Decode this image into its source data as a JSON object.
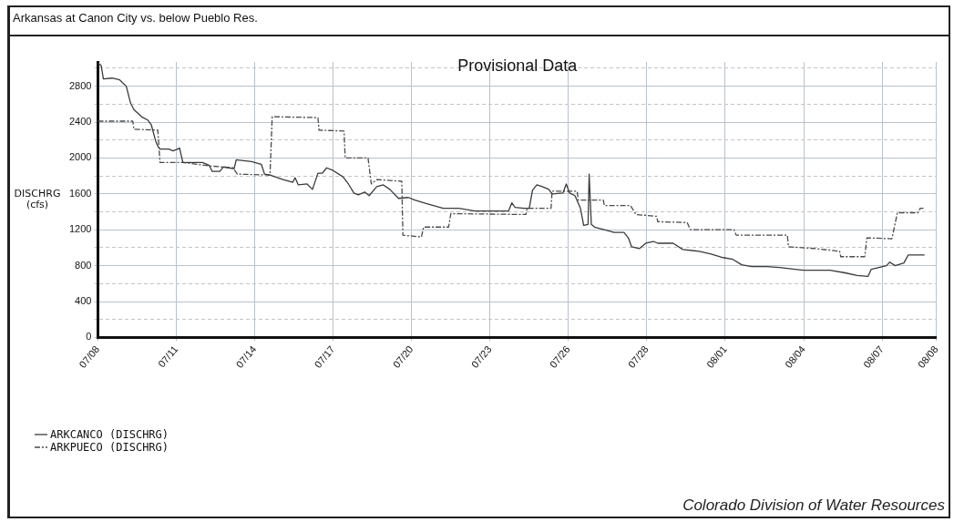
{
  "chart_data": {
    "type": "line",
    "title": "Arkansas at Canon City vs. below Pueblo Res.",
    "ylabel": "DISCHRG\n(cfs)",
    "annotations": [
      "Provisional Data",
      "Colorado Division of Water Resources"
    ],
    "xlim": [
      "--07-08T00:00",
      "--08-09T02:00"
    ],
    "xticks": [
      {
        "value": "--07-08",
        "label": "07/08"
      },
      {
        "value": "--07-11",
        "label": "07/11"
      },
      {
        "value": "--07-14",
        "label": "07/14"
      },
      {
        "value": "--07-17",
        "label": "07/17"
      },
      {
        "value": "--07-20",
        "label": "07/20"
      },
      {
        "value": "--07-23",
        "label": "07/23"
      },
      {
        "value": "--07-26",
        "label": "07/26"
      },
      {
        "value": "--07-29",
        "label": "07/28"
      },
      {
        "value": "--08-01",
        "label": "08/01"
      },
      {
        "value": "--08-04",
        "label": "08/04"
      },
      {
        "value": "--08-07",
        "label": "08/07"
      },
      {
        "value": "--08-09T02:00",
        "label": "08/08"
      }
    ],
    "ylim": [
      0,
      3070
    ],
    "yticks": [
      0,
      {
        "value": 200,
        "label": null
      },
      400,
      {
        "value": 600,
        "label": null
      },
      800,
      {
        "value": 1000,
        "label": null
      },
      1200,
      {
        "value": 1400,
        "label": null
      },
      1600,
      {
        "value": 1800,
        "label": null
      },
      2000,
      {
        "value": 2200,
        "label": null
      },
      2400,
      {
        "value": 2600,
        "label": null
      },
      2800,
      {
        "value": 3000,
        "label": null
      }
    ],
    "grid": true,
    "legend": "bottom left",
    "marker": "none",
    "series": [
      {
        "name": "ARKCANCO (DISCHRG)",
        "color": "#3a3a3a",
        "line_style": "solid",
        "x": [
          "--07-08T00:00",
          "--07-08T03:00",
          "--07-08T05:00",
          "--07-08T13:00",
          "--07-08T20:00",
          "--07-09T02:00",
          "--07-09T06:00",
          "--07-09T09:00",
          "--07-09T16:00",
          "--07-09T22:00",
          "--07-10T01:00",
          "--07-10T05:00",
          "--07-10T07:00",
          "--07-10T09:00",
          "--07-10T17:00",
          "--07-10T21:00",
          "--07-11T03:00",
          "--07-11T06:00",
          "--07-11T17:00",
          "--07-12T00:00",
          "--07-12T06:00",
          "--07-12T09:00",
          "--07-12T16:00",
          "--07-12T19:00",
          "--07-13T05:00",
          "--07-13T07:00",
          "--07-13T21:00",
          "--07-14T06:00",
          "--07-14T09:00",
          "--07-14T14:00",
          "--07-15T02:00",
          "--07-15T11:00",
          "--07-15T13:00",
          "--07-15T16:00",
          "--07-16T00:00",
          "--07-16T05:00",
          "--07-16T10:00",
          "--07-16T14:00",
          "--07-16T18:00",
          "--07-17T00:00",
          "--07-17T09:00",
          "--07-17T14:00",
          "--07-17T19:00",
          "--07-17T23:00",
          "--07-18T05:00",
          "--07-18T09:00",
          "--07-18T16:00",
          "--07-18T22:00",
          "--07-19T04:00",
          "--07-19T12:00",
          "--07-19T21:00",
          "--07-20T03:00",
          "--07-20T14:00",
          "--07-21T05:00",
          "--07-21T19:00",
          "--07-22T10:00",
          "--07-23T00:00",
          "--07-23T17:00",
          "--07-23T20:00",
          "--07-23T23:00",
          "--07-24T07:00",
          "--07-24T12:00",
          "--07-24T15:00",
          "--07-24T19:00",
          "--07-25T00:00",
          "--07-25T06:00",
          "--07-25T09:00",
          "--07-25T19:00",
          "--07-25T22:00",
          "--07-26T01:00",
          "--07-26T06:00",
          "--07-26T11:00",
          "--07-26T14:00",
          "--07-26T18:00",
          "--07-26T19:00",
          "--07-26T21:00",
          "--07-27T00:00",
          "--07-27T12:00",
          "--07-27T18:00",
          "--07-28T03:00",
          "--07-28T07:00",
          "--07-28T10:00",
          "--07-28T17:00",
          "--07-28T23:00",
          "--07-29T06:00",
          "--07-29T10:00",
          "--07-30T00:00",
          "--07-30T09:00",
          "--07-31T00:00",
          "--07-31T11:00",
          "--07-31T22:00",
          "--08-01T07:00",
          "--08-01T15:00",
          "--08-02T00:00",
          "--08-02T14:00",
          "--08-03T02:00",
          "--08-03T16:00",
          "--08-04T00:00",
          "--08-05T00:00",
          "--08-05T14:00",
          "--08-06T01:00",
          "--08-06T11:00",
          "--08-06T14:00",
          "--08-06T21:00",
          "--08-07T04:00",
          "--08-07T07:00",
          "--08-07T12:00",
          "--08-07T20:00",
          "--08-08T00:00",
          "--08-08T15:00"
        ],
        "values": [
          3060,
          3030,
          2880,
          2890,
          2870,
          2800,
          2610,
          2540,
          2460,
          2420,
          2370,
          2190,
          2130,
          2100,
          2100,
          2080,
          2110,
          1950,
          1950,
          1950,
          1920,
          1850,
          1850,
          1900,
          1880,
          1980,
          1960,
          1930,
          1820,
          1810,
          1760,
          1730,
          1780,
          1700,
          1710,
          1650,
          1830,
          1830,
          1890,
          1860,
          1790,
          1710,
          1610,
          1590,
          1620,
          1580,
          1680,
          1700,
          1650,
          1550,
          1560,
          1530,
          1490,
          1440,
          1440,
          1410,
          1410,
          1410,
          1500,
          1450,
          1440,
          1440,
          1640,
          1700,
          1680,
          1650,
          1600,
          1610,
          1710,
          1610,
          1580,
          1440,
          1250,
          1260,
          1820,
          1260,
          1230,
          1190,
          1170,
          1170,
          1110,
          1010,
          990,
          1050,
          1070,
          1050,
          1050,
          980,
          960,
          930,
          890,
          870,
          810,
          790,
          790,
          780,
          760,
          750,
          750,
          720,
          690,
          680,
          760,
          780,
          800,
          840,
          800,
          830,
          920,
          920
        ]
      },
      {
        "name": "ARKPUECO (DISCHRG)",
        "color": "#4a4a4a",
        "line_style": "dashed",
        "x": [
          "--07-08T00:00",
          "--07-09T05:00",
          "--07-09T08:00",
          "--07-09T09:00",
          "--07-10T07:00",
          "--07-10T09:00",
          "--07-11T06:00",
          "--07-12T08:00",
          "--07-13T04:00",
          "--07-13T08:00",
          "--07-14T14:00",
          "--07-14T16:00",
          "--07-16T10:00",
          "--07-16T11:00",
          "--07-17T10:00",
          "--07-17T11:00",
          "--07-18T08:00",
          "--07-18T11:00",
          "--07-18T16:00",
          "--07-19T15:00",
          "--07-19T16:00",
          "--07-20T09:00",
          "--07-20T11:00",
          "--07-21T10:00",
          "--07-21T12:00",
          "--07-24T09:00",
          "--07-24T10:00",
          "--07-25T08:00",
          "--07-25T09:00",
          "--07-26T08:00",
          "--07-26T09:00",
          "--07-27T08:00",
          "--07-27T09:00",
          "--07-28T09:00",
          "--07-28T14:00",
          "--07-29T09:00",
          "--07-29T10:00",
          "--07-30T13:00",
          "--07-30T16:00",
          "--08-01T08:00",
          "--08-01T10:00",
          "--08-03T09:00",
          "--08-03T10:00",
          "--08-04T11:00",
          "--08-05T09:00",
          "--08-05T10:00",
          "--08-06T08:00",
          "--08-06T10:00",
          "--08-07T09:00",
          "--08-07T14:00",
          "--08-08T09:00",
          "--08-08T11:00",
          "--08-08T15:00"
        ],
        "values": [
          2410,
          2410,
          2410,
          2320,
          2310,
          1950,
          1950,
          1910,
          1890,
          1820,
          1810,
          2460,
          2450,
          2310,
          2300,
          2000,
          2000,
          1710,
          1760,
          1740,
          1140,
          1120,
          1230,
          1230,
          1380,
          1370,
          1440,
          1440,
          1630,
          1630,
          1530,
          1530,
          1470,
          1470,
          1370,
          1350,
          1290,
          1280,
          1200,
          1200,
          1140,
          1140,
          1010,
          990,
          960,
          900,
          900,
          1110,
          1100,
          1390,
          1390,
          1440,
          1440
        ]
      }
    ]
  }
}
